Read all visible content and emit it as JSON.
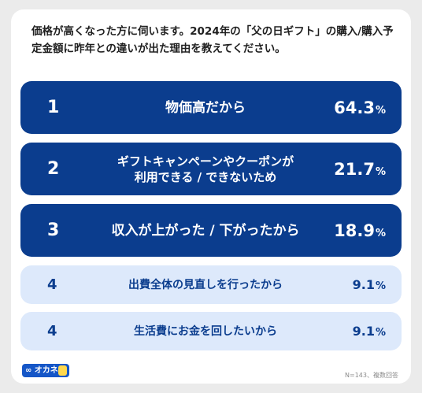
{
  "question": "価格が高くなった方に伺います。2024年の「父の日ギフト」の購入/購入予定金額に昨年との違いが出た理由を教えてください。",
  "percent_sign": "%",
  "colors": {
    "dark": "#0b3d8e",
    "light": "#dde9fb",
    "logo": "#1556c7"
  },
  "chart_data": {
    "type": "bar",
    "title": "価格が高くなった方に伺います。2024年の「父の日ギフト」の購入/購入予定金額に昨年との違いが出た理由を教えてください。",
    "unit": "%",
    "items": [
      {
        "rank": "1",
        "label": [
          "物価高だから"
        ],
        "value": "64.3"
      },
      {
        "rank": "2",
        "label": [
          "ギフトキャンペーンやクーポンが",
          "利用できる / できないため"
        ],
        "value": "21.7"
      },
      {
        "rank": "3",
        "label": [
          "収入が上がった / 下がったから"
        ],
        "value": "18.9"
      },
      {
        "rank": "4",
        "label": [
          "出費全体の見直しを行ったから"
        ],
        "value": "9.1"
      },
      {
        "rank": "4",
        "label": [
          "生活費にお金を回したいから"
        ],
        "value": "9.1"
      }
    ]
  },
  "footer": {
    "logo_text": "∞ オカネコ",
    "note": "N=143、複数回答"
  }
}
